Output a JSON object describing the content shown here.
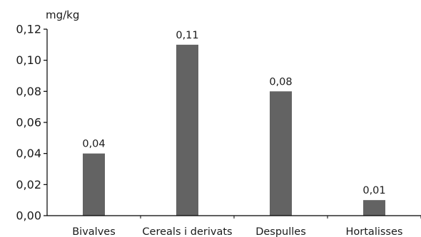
{
  "chart_data": {
    "type": "bar",
    "title": "",
    "ylabel": "mg/kg",
    "xlabel": "",
    "categories": [
      "Bivalves",
      "Cereals i derivats",
      "Despulles",
      "Hortalisses"
    ],
    "values": [
      0.04,
      0.11,
      0.08,
      0.01
    ],
    "data_labels": [
      "0,04",
      "0,11",
      "0,08",
      "0,01"
    ],
    "yticks": [
      0,
      0.02,
      0.04,
      0.06,
      0.08,
      0.1,
      0.12
    ],
    "ytick_labels": [
      "0,00",
      "0,02",
      "0,04",
      "0,06",
      "0,08",
      "0,10",
      "0,12"
    ],
    "ylim": [
      0,
      0.12
    ],
    "bar_color": "#636363",
    "grid": false,
    "legend": "none"
  }
}
